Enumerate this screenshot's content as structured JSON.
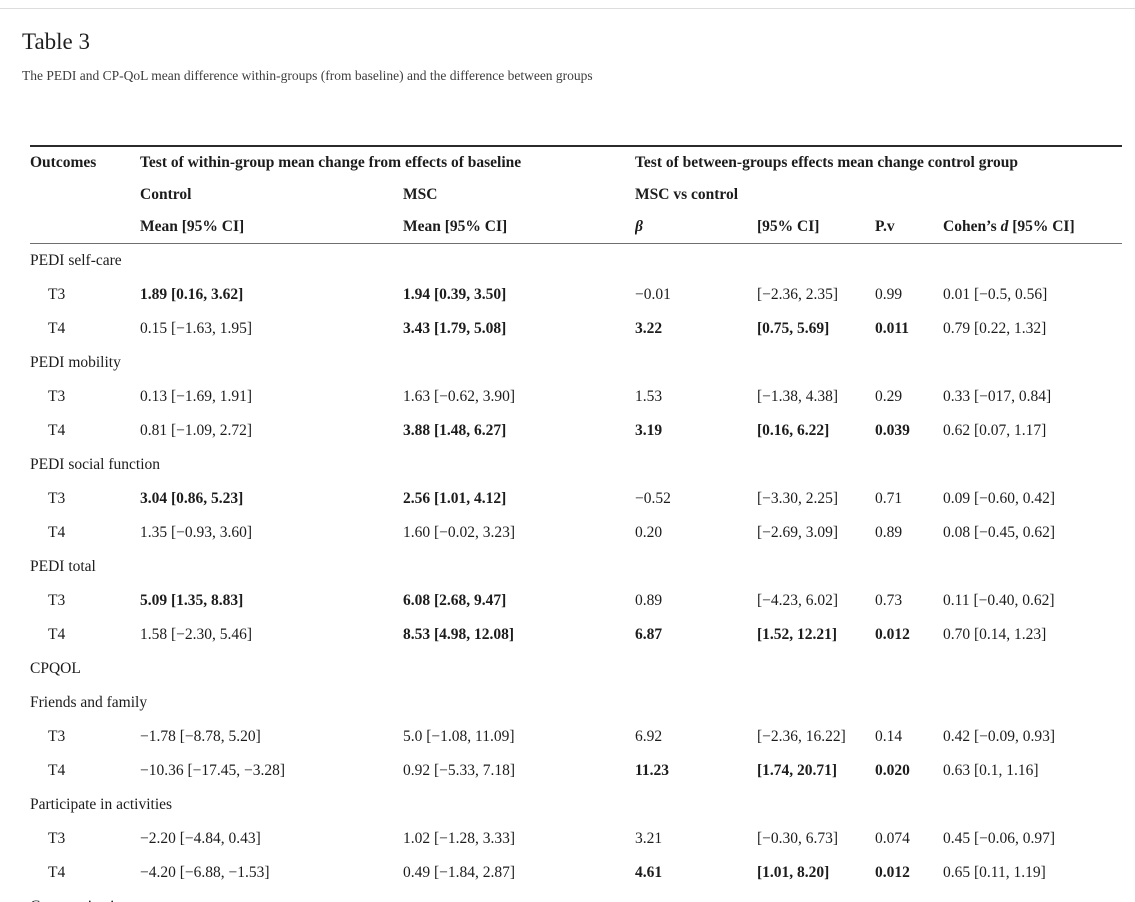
{
  "page": {
    "title": "Table 3",
    "caption": "The PEDI and CP-QoL mean difference within-groups (from baseline) and the difference between groups"
  },
  "table": {
    "header": {
      "outcomes": "Outcomes",
      "within_group_span": "Test of within-group mean change from effects of baseline",
      "between_groups_span": "Test of between-groups effects mean change control group",
      "control": "Control",
      "msc": "MSC",
      "msc_vs_control": "MSC vs control",
      "mean_ci_control": "Mean [95% CI]",
      "mean_ci_msc": "Mean [95% CI]",
      "beta": "β",
      "ci": "[95% CI]",
      "pv": "P.v",
      "cohens_prefix": "Cohen’s ",
      "cohens_d": "d",
      "cohens_suffix": " [95% CI]"
    },
    "column_keys": [
      "control-mean",
      "msc-mean",
      "beta",
      "ci",
      "pv",
      "cohens-d"
    ],
    "sections": [
      {
        "label": "PEDI self-care",
        "rows": [
          {
            "time": "T3",
            "cells": [
              {
                "t": "1.89 [0.16, 3.62]",
                "b": true
              },
              {
                "t": "1.94 [0.39, 3.50]",
                "b": true
              },
              {
                "t": "−0.01",
                "b": false
              },
              {
                "t": "[−2.36, 2.35]",
                "b": false
              },
              {
                "t": "0.99",
                "b": false
              },
              {
                "t": "0.01 [−0.5, 0.56]",
                "b": false
              }
            ]
          },
          {
            "time": "T4",
            "cells": [
              {
                "t": "0.15 [−1.63, 1.95]",
                "b": false
              },
              {
                "t": "3.43 [1.79, 5.08]",
                "b": true
              },
              {
                "t": "3.22",
                "b": true
              },
              {
                "t": "[0.75, 5.69]",
                "b": true
              },
              {
                "t": "0.011",
                "b": true
              },
              {
                "t": "0.79 [0.22, 1.32]",
                "b": false
              }
            ]
          }
        ]
      },
      {
        "label": "PEDI mobility",
        "rows": [
          {
            "time": "T3",
            "cells": [
              {
                "t": "0.13 [−1.69, 1.91]",
                "b": false
              },
              {
                "t": "1.63 [−0.62, 3.90]",
                "b": false
              },
              {
                "t": "1.53",
                "b": false
              },
              {
                "t": "[−1.38, 4.38]",
                "b": false
              },
              {
                "t": "0.29",
                "b": false
              },
              {
                "t": "0.33 [−017, 0.84]",
                "b": false
              }
            ]
          },
          {
            "time": "T4",
            "cells": [
              {
                "t": "0.81 [−1.09, 2.72]",
                "b": false
              },
              {
                "t": "3.88 [1.48, 6.27]",
                "b": true
              },
              {
                "t": "3.19",
                "b": true
              },
              {
                "t": "[0.16, 6.22]",
                "b": true
              },
              {
                "t": "0.039",
                "b": true
              },
              {
                "t": "0.62 [0.07, 1.17]",
                "b": false
              }
            ]
          }
        ]
      },
      {
        "label": "PEDI social function",
        "rows": [
          {
            "time": "T3",
            "cells": [
              {
                "t": "3.04 [0.86, 5.23]",
                "b": true
              },
              {
                "t": "2.56 [1.01, 4.12]",
                "b": true
              },
              {
                "t": "−0.52",
                "b": false
              },
              {
                "t": "[−3.30, 2.25]",
                "b": false
              },
              {
                "t": "0.71",
                "b": false
              },
              {
                "t": "0.09 [−0.60, 0.42]",
                "b": false
              }
            ]
          },
          {
            "time": "T4",
            "cells": [
              {
                "t": "1.35 [−0.93, 3.60]",
                "b": false
              },
              {
                "t": "1.60 [−0.02, 3.23]",
                "b": false
              },
              {
                "t": "0.20",
                "b": false
              },
              {
                "t": "[−2.69, 3.09]",
                "b": false
              },
              {
                "t": "0.89",
                "b": false
              },
              {
                "t": "0.08 [−0.45, 0.62]",
                "b": false
              }
            ]
          }
        ]
      },
      {
        "label": "PEDI total",
        "rows": [
          {
            "time": "T3",
            "cells": [
              {
                "t": "5.09 [1.35, 8.83]",
                "b": true
              },
              {
                "t": "6.08 [2.68, 9.47]",
                "b": true
              },
              {
                "t": "0.89",
                "b": false
              },
              {
                "t": "[−4.23, 6.02]",
                "b": false
              },
              {
                "t": "0.73",
                "b": false
              },
              {
                "t": "0.11 [−0.40, 0.62]",
                "b": false
              }
            ]
          },
          {
            "time": "T4",
            "cells": [
              {
                "t": "1.58 [−2.30, 5.46]",
                "b": false
              },
              {
                "t": "8.53 [4.98, 12.08]",
                "b": true
              },
              {
                "t": "6.87",
                "b": true
              },
              {
                "t": "[1.52, 12.21]",
                "b": true
              },
              {
                "t": "0.012",
                "b": true
              },
              {
                "t": "0.70 [0.14, 1.23]",
                "b": false
              }
            ]
          }
        ]
      },
      {
        "label": "CPQOL",
        "rows": []
      },
      {
        "label": "Friends and family",
        "rows": [
          {
            "time": "T3",
            "cells": [
              {
                "t": "−1.78 [−8.78, 5.20]",
                "b": false
              },
              {
                "t": "5.0 [−1.08, 11.09]",
                "b": false
              },
              {
                "t": "6.92",
                "b": false
              },
              {
                "t": "[−2.36, 16.22]",
                "b": false
              },
              {
                "t": "0.14",
                "b": false
              },
              {
                "t": "0.42 [−0.09, 0.93]",
                "b": false
              }
            ]
          },
          {
            "time": "T4",
            "cells": [
              {
                "t": "−10.36 [−17.45, −3.28]",
                "b": false
              },
              {
                "t": "0.92 [−5.33, 7.18]",
                "b": false
              },
              {
                "t": "11.23",
                "b": true
              },
              {
                "t": "[1.74, 20.71]",
                "b": true
              },
              {
                "t": "0.020",
                "b": true
              },
              {
                "t": "0.63 [0.1, 1.16]",
                "b": false
              }
            ]
          }
        ]
      },
      {
        "label": "Participate in activities",
        "rows": [
          {
            "time": "T3",
            "cells": [
              {
                "t": "−2.20 [−4.84, 0.43]",
                "b": false
              },
              {
                "t": "1.02 [−1.28, 3.33]",
                "b": false
              },
              {
                "t": "3.21",
                "b": false
              },
              {
                "t": "[−0.30, 6.73]",
                "b": false
              },
              {
                "t": "0.074",
                "b": false
              },
              {
                "t": "0.45 [−0.06, 0.97]",
                "b": false
              }
            ]
          },
          {
            "time": "T4",
            "cells": [
              {
                "t": "−4.20 [−6.88, −1.53]",
                "b": false
              },
              {
                "t": "0.49 [−1.84, 2.87]",
                "b": false
              },
              {
                "t": "4.61",
                "b": true
              },
              {
                "t": "[1.01, 8.20]",
                "b": true
              },
              {
                "t": "0.012",
                "b": true
              },
              {
                "t": "0.65 [0.11, 1.19]",
                "b": false
              }
            ]
          }
        ]
      },
      {
        "label": "Communication",
        "rows": []
      }
    ]
  }
}
